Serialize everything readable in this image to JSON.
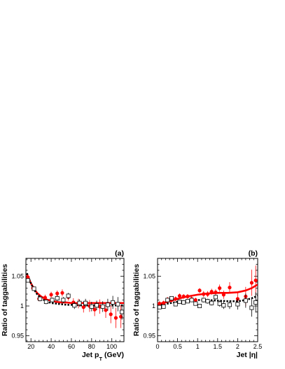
{
  "chart_data": [
    {
      "type": "scatter",
      "panel_label": "(a)",
      "xlabel_main": "Jet p",
      "xlabel_sub": "T",
      "xlabel_unit": " (GeV)",
      "ylabel": "Ratio of taggabilities",
      "xlim": [
        15,
        112
      ],
      "ylim": [
        0.94,
        1.08
      ],
      "xticks": [
        20,
        40,
        60,
        80,
        100
      ],
      "xtick_labels": [
        "20",
        "40",
        "60",
        "80",
        "100"
      ],
      "yticks": [
        0.95,
        1.0,
        1.05
      ],
      "ytick_labels": [
        "0.95",
        "1",
        "1.05"
      ],
      "grid": false,
      "legend": "none",
      "colors": {
        "series_red": "#ff0000",
        "series_black": "#000000"
      },
      "series": [
        {
          "marker": "filled-circle",
          "color": "#ff0000",
          "x": [
            17,
            22,
            28,
            34,
            40,
            46,
            51,
            57,
            62,
            67,
            72,
            78,
            83,
            88,
            94,
            99,
            104,
            109
          ],
          "y": [
            1.048,
            1.03,
            1.012,
            1.014,
            1.019,
            1.021,
            1.022,
            1.015,
            1.006,
            1.004,
            0.998,
            1.0,
            0.994,
            0.999,
            0.993,
            0.986,
            0.98,
            0.982
          ],
          "err": [
            0.004,
            0.004,
            0.004,
            0.005,
            0.005,
            0.005,
            0.006,
            0.006,
            0.007,
            0.008,
            0.009,
            0.01,
            0.011,
            0.012,
            0.013,
            0.015,
            0.017,
            0.019
          ]
        },
        {
          "marker": "open-square",
          "color": "#000000",
          "x": [
            17,
            23,
            29,
            35,
            41,
            46,
            52,
            57,
            63,
            68,
            74,
            80,
            85,
            91,
            96,
            101,
            106,
            110
          ],
          "y": [
            1.043,
            1.029,
            1.012,
            1.007,
            1.01,
            1.013,
            1.01,
            1.017,
            1.001,
            1.005,
            1.005,
            0.999,
            1.001,
            0.999,
            1.002,
            1.006,
            1.003,
            0.99
          ],
          "err": [
            0.003,
            0.003,
            0.004,
            0.004,
            0.004,
            0.005,
            0.005,
            0.005,
            0.006,
            0.006,
            0.007,
            0.008,
            0.008,
            0.009,
            0.01,
            0.011,
            0.012,
            0.013
          ]
        }
      ],
      "fits": [
        {
          "color": "#ff0000",
          "style": "solid",
          "x": [
            16,
            18,
            20,
            23,
            26,
            30,
            35,
            40,
            45,
            50,
            55,
            60,
            70,
            80,
            90,
            100,
            112
          ],
          "y": [
            1.054,
            1.045,
            1.038,
            1.029,
            1.022,
            1.016,
            1.011,
            1.009,
            1.007,
            1.006,
            1.006,
            1.005,
            1.005,
            1.005,
            1.005,
            1.005,
            1.005
          ]
        },
        {
          "color": "#000000",
          "style": "dotted",
          "x": [
            16,
            18,
            20,
            23,
            26,
            30,
            35,
            40,
            45,
            50,
            55,
            60,
            70,
            80,
            90,
            100,
            112
          ],
          "y": [
            1.055,
            1.046,
            1.038,
            1.028,
            1.02,
            1.013,
            1.008,
            1.005,
            1.004,
            1.003,
            1.002,
            1.002,
            1.001,
            1.001,
            1.001,
            1.001,
            1.001
          ]
        }
      ]
    },
    {
      "type": "scatter",
      "panel_label": "(b)",
      "xlabel_main": "Jet |η|",
      "xlabel_sub": "",
      "xlabel_unit": "",
      "ylabel": "Ratio of taggabilities",
      "xlim": [
        0,
        2.5
      ],
      "ylim": [
        0.94,
        1.08
      ],
      "xticks": [
        0,
        0.5,
        1,
        1.5,
        2,
        2.5
      ],
      "xtick_labels": [
        "0",
        "0.5",
        "1",
        "1.5",
        "2",
        "2.5"
      ],
      "yticks": [
        0.95,
        1.0,
        1.05
      ],
      "ytick_labels": [
        "0.95",
        "1",
        "1.05"
      ],
      "grid": false,
      "legend": "none",
      "colors": {
        "series_red": "#ff0000",
        "series_black": "#000000"
      },
      "series": [
        {
          "marker": "filled-circle",
          "color": "#ff0000",
          "x": [
            0.05,
            0.15,
            0.25,
            0.35,
            0.45,
            0.55,
            0.65,
            0.75,
            0.85,
            0.95,
            1.05,
            1.15,
            1.25,
            1.35,
            1.45,
            1.55,
            1.65,
            1.8,
            2.0,
            2.2,
            2.35,
            2.45
          ],
          "y": [
            1.004,
            1.005,
            1.011,
            1.01,
            1.012,
            1.017,
            1.016,
            1.016,
            1.012,
            1.01,
            1.026,
            1.02,
            1.02,
            1.024,
            1.023,
            1.03,
            1.019,
            1.031,
            1.012,
            1.016,
            1.039,
            1.043
          ],
          "err": [
            0.004,
            0.004,
            0.004,
            0.004,
            0.004,
            0.004,
            0.004,
            0.004,
            0.004,
            0.004,
            0.004,
            0.005,
            0.005,
            0.005,
            0.005,
            0.006,
            0.007,
            0.009,
            0.012,
            0.016,
            0.022,
            0.025
          ]
        },
        {
          "marker": "open-square",
          "color": "#000000",
          "x": [
            0.05,
            0.15,
            0.25,
            0.35,
            0.45,
            0.55,
            0.65,
            0.75,
            0.85,
            0.95,
            1.05,
            1.15,
            1.25,
            1.35,
            1.45,
            1.55,
            1.65,
            1.8,
            2.0,
            2.2,
            2.35,
            2.45
          ],
          "y": [
            0.998,
            0.999,
            1.01,
            1.013,
            1.003,
            1.007,
            1.006,
            1.008,
            1.01,
            1.004,
            1.0,
            1.01,
            1.008,
            1.005,
            1.015,
            1.004,
            1.001,
            1.002,
            1.003,
            1.009,
            0.997,
            1.006
          ],
          "err": [
            0.003,
            0.003,
            0.003,
            0.003,
            0.003,
            0.003,
            0.003,
            0.003,
            0.003,
            0.003,
            0.003,
            0.004,
            0.004,
            0.004,
            0.004,
            0.005,
            0.006,
            0.007,
            0.009,
            0.012,
            0.015,
            0.017
          ]
        }
      ],
      "fits": [
        {
          "color": "#ff0000",
          "style": "solid",
          "x": [
            0,
            0.25,
            0.5,
            0.75,
            1.0,
            1.25,
            1.5,
            1.75,
            2.0,
            2.2,
            2.35,
            2.5
          ],
          "y": [
            1.003,
            1.007,
            1.012,
            1.016,
            1.019,
            1.021,
            1.022,
            1.022,
            1.023,
            1.026,
            1.03,
            1.036
          ]
        },
        {
          "color": "#000000",
          "style": "dotted",
          "x": [
            0,
            0.25,
            0.5,
            0.75,
            1.0,
            1.25,
            1.5,
            1.75,
            2.0,
            2.2,
            2.35,
            2.5
          ],
          "y": [
            1.001,
            1.004,
            1.007,
            1.009,
            1.01,
            1.01,
            1.009,
            1.008,
            1.008,
            1.01,
            1.013,
            1.017
          ]
        }
      ]
    }
  ]
}
